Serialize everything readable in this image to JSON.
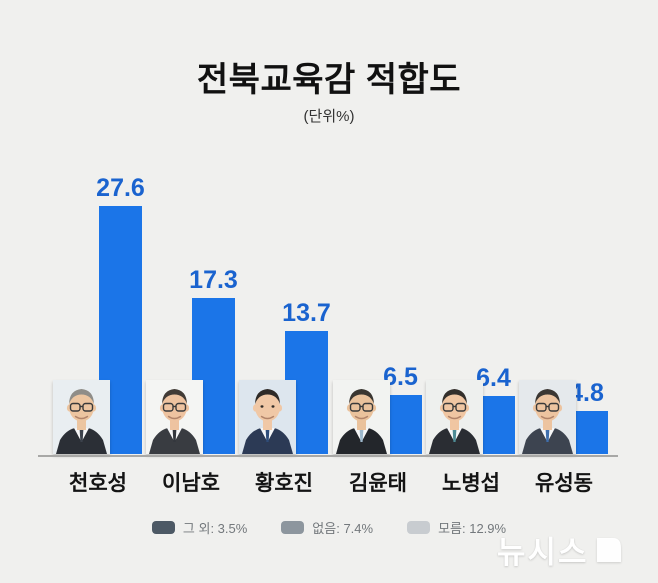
{
  "title": "전북교육감 적합도",
  "subtitle": "(단위%)",
  "chart_data": {
    "type": "bar",
    "title": "전북교육감 적합도",
    "unit_note": "(단위%)",
    "categories": [
      "천호성",
      "이남호",
      "황호진",
      "김윤태",
      "노병섭",
      "유성동"
    ],
    "values": [
      27.6,
      17.3,
      13.7,
      6.5,
      6.4,
      4.8
    ],
    "ylim": [
      0,
      30
    ],
    "grid": false,
    "value_labels_shown": true,
    "bar_color": "#1b75e8",
    "value_label_color": "#1a63cf",
    "legend_position": "bottom",
    "legend": [
      {
        "label": "그 외: 3.5%",
        "value": 3.5,
        "color": "#4d5965"
      },
      {
        "label": "없음: 7.4%",
        "value": 7.4,
        "color": "#8d969e"
      },
      {
        "label": "모름: 12.9%",
        "value": 12.9,
        "color": "#c8ccd0"
      }
    ]
  },
  "avatars": [
    {
      "bg": "#e9eef1",
      "hair": "#8f8d88",
      "suit": "#2b2f36",
      "tie": "#3c424c",
      "skin": "#ecc5a0",
      "glasses": true
    },
    {
      "bg": "#f4f5f3",
      "hair": "#413b36",
      "suit": "#393c41",
      "tie": "#33373d",
      "skin": "#eec3a0",
      "glasses": true
    },
    {
      "bg": "#dde6ee",
      "hair": "#2e2a27",
      "suit": "#2c3a55",
      "tie": "#2f4d7a",
      "skin": "#f0c8a6",
      "glasses": false
    },
    {
      "bg": "#f2f3f1",
      "hair": "#3a3631",
      "suit": "#23262b",
      "tie": "#9db8cc",
      "skin": "#eac29c",
      "glasses": true
    },
    {
      "bg": "#eef0ee",
      "hair": "#332f2b",
      "suit": "#2a2d33",
      "tie": "#4e8c96",
      "skin": "#f0c6a2",
      "glasses": true
    },
    {
      "bg": "#e5e9ec",
      "hair": "#3b3733",
      "suit": "#3d4450",
      "tie": "#3f6fae",
      "skin": "#edc4a0",
      "glasses": true
    }
  ],
  "watermark": {
    "text": "뉴시스"
  }
}
